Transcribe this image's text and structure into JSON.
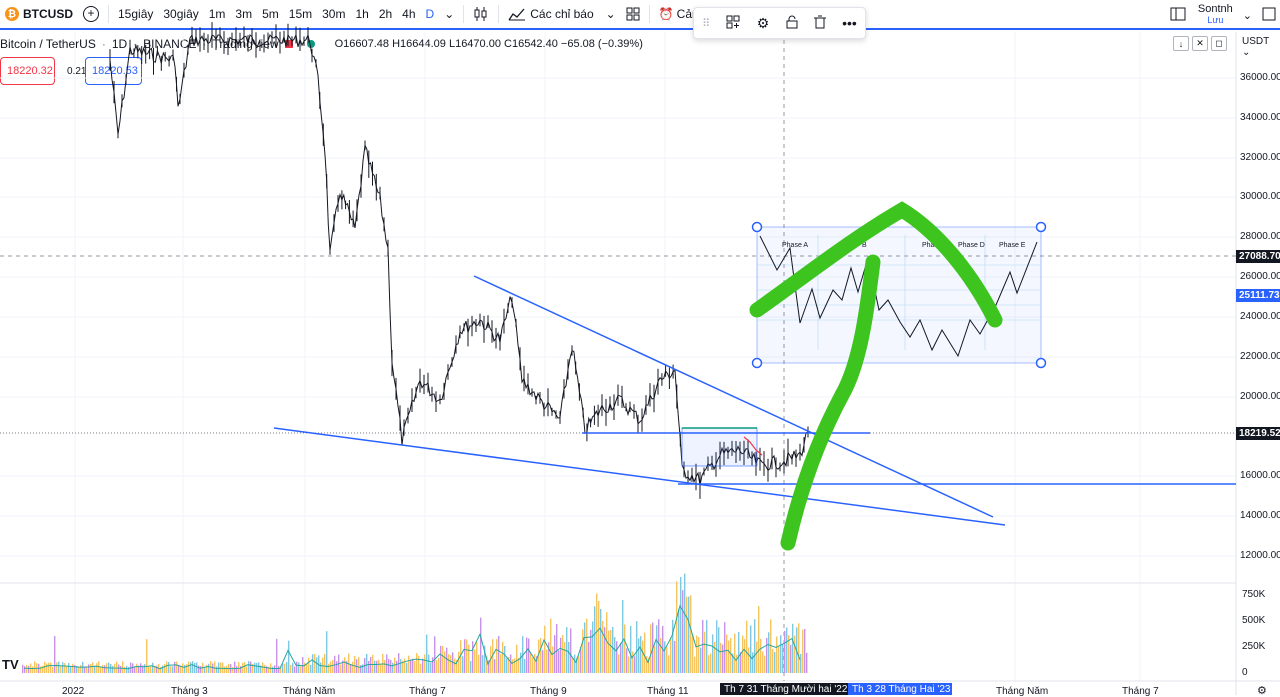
{
  "toolbar": {
    "symbol": "BTCUSD",
    "intervals": [
      "15giây",
      "30giây",
      "1m",
      "3m",
      "5m",
      "15m",
      "30m",
      "1h",
      "2h",
      "4h",
      "D"
    ],
    "indicators_label": "Các chỉ báo",
    "alert_label": "Cảnh",
    "user_name": "Sontnh",
    "save_label": "Lưu"
  },
  "legend": {
    "pair": "Bitcoin / TetherUS",
    "interval": "1D",
    "exchange": "BINANCE",
    "source": "TradingView",
    "open": "O16607.48",
    "high": "H16644.09",
    "low": "L16470.00",
    "close": "C16542.40",
    "change": "−65.08 (−0.39%)"
  },
  "trade": {
    "sell": "18220.32",
    "spread": "0.21",
    "buy": "18220.53"
  },
  "price_axis": {
    "currency": "USDT",
    "labels": [
      "36000.00",
      "34000.00",
      "32000.00",
      "30000.00",
      "28000.00",
      "26000.00",
      "24000.00",
      "22000.00",
      "20000.00",
      "16000.00",
      "14000.00",
      "12000.00"
    ],
    "tag_dashed": "27088.70",
    "tag_blue": "25111.73",
    "tag_current": "18219.52"
  },
  "volume_axis": [
    "750K",
    "500K",
    "250K",
    "0"
  ],
  "time_axis": {
    "labels": [
      "2022",
      "Tháng 3",
      "Tháng Năm",
      "Tháng 7",
      "Tháng 9",
      "Tháng 11",
      "Tháng Năm",
      "Tháng 7"
    ],
    "hl1": "Th 7 31 Tháng Mười hai '22",
    "hl2": "Th 3 28 Tháng Hai '23"
  },
  "pattern": {
    "phases": [
      "Phase A",
      "B",
      "Phase C",
      "Phase D",
      "Phase E"
    ]
  },
  "colors": {
    "accent": "#2962ff",
    "up": "#089981",
    "down": "#f23645",
    "marker": "#3ec41e"
  }
}
